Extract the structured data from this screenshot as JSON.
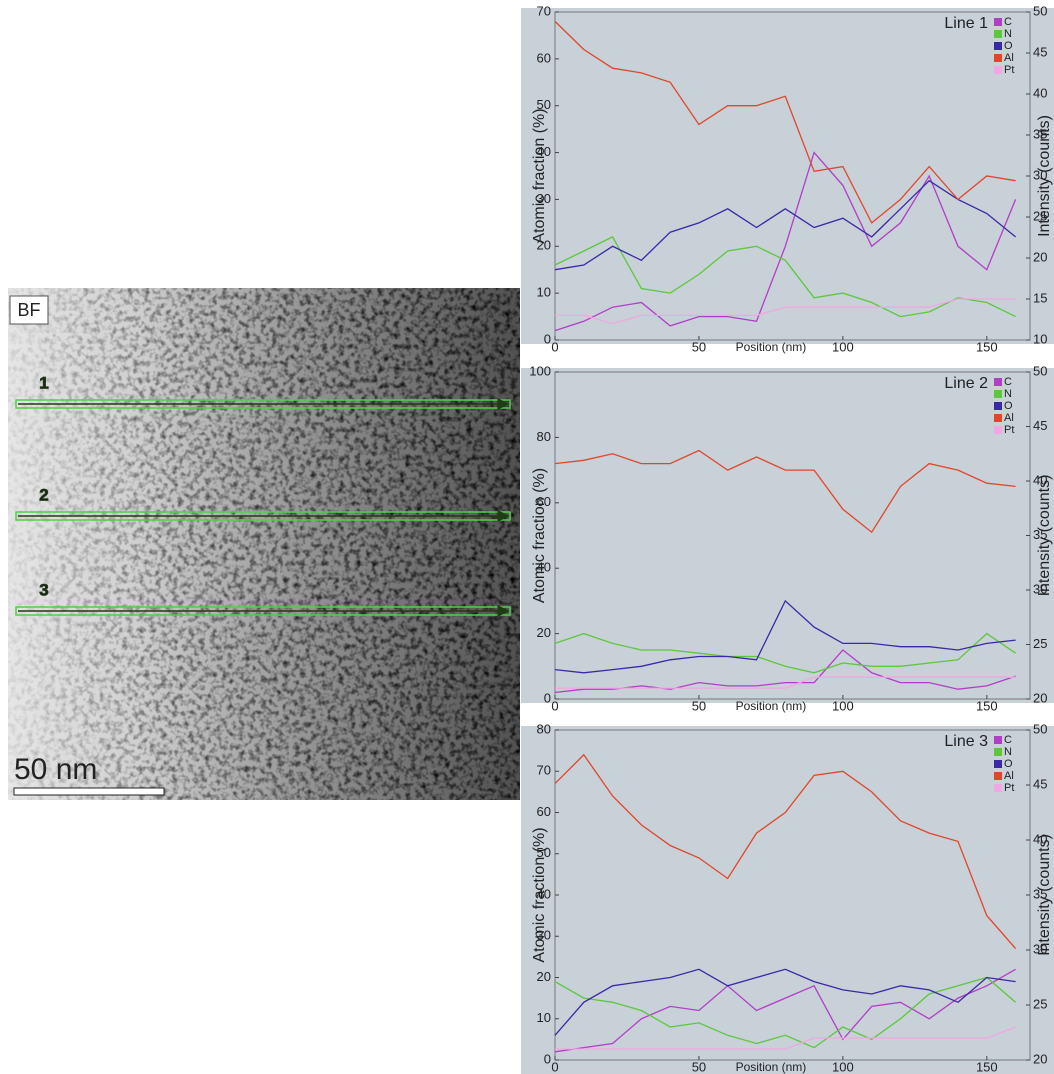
{
  "image": {
    "label": "BF",
    "scale_bar": "50 nm",
    "markers": [
      "1",
      "2",
      "3"
    ]
  },
  "chart_data": [
    {
      "type": "line",
      "title": "Line 1",
      "x_label": "Position (nm)",
      "y_label": "Atomic fraction (%)",
      "y2_label": "Intensity (counts)",
      "x": [
        0,
        10,
        20,
        30,
        40,
        50,
        60,
        70,
        80,
        90,
        100,
        110,
        120,
        130,
        140,
        150,
        160
      ],
      "xlim": [
        0,
        165
      ],
      "xticks": [
        0,
        50,
        100,
        150
      ],
      "ylim": [
        0,
        70
      ],
      "yticks": [
        0,
        10,
        20,
        30,
        40,
        50,
        60,
        70
      ],
      "y2lim": [
        10,
        50
      ],
      "y2ticks": [
        10,
        15,
        20,
        25,
        30,
        35,
        40,
        45,
        50
      ],
      "series": [
        {
          "name": "C",
          "color": "#b23ec8",
          "values": [
            2,
            4,
            7,
            8,
            3,
            5,
            5,
            4,
            20,
            40,
            33,
            20,
            25,
            35,
            20,
            15,
            30
          ]
        },
        {
          "name": "N",
          "color": "#5cc83a",
          "values": [
            16,
            19,
            22,
            11,
            10,
            14,
            19,
            20,
            17,
            9,
            10,
            8,
            5,
            6,
            9,
            8,
            5
          ]
        },
        {
          "name": "O",
          "color": "#3a28a8",
          "values": [
            15,
            16,
            20,
            17,
            23,
            25,
            28,
            24,
            28,
            24,
            26,
            22,
            28,
            34,
            30,
            27,
            22
          ]
        },
        {
          "name": "Al",
          "color": "#e2462a",
          "values": [
            68,
            62,
            58,
            57,
            55,
            46,
            50,
            50,
            52,
            36,
            37,
            25,
            30,
            37,
            30,
            35,
            34
          ]
        },
        {
          "name": "Pt",
          "color": "#f2a6e2",
          "axis": "y2",
          "values": [
            13,
            13,
            12,
            13,
            13,
            13,
            13,
            13,
            14,
            14,
            14,
            14,
            14,
            14,
            15,
            15,
            15
          ]
        }
      ]
    },
    {
      "type": "line",
      "title": "Line 2",
      "x_label": "Position (nm)",
      "y_label": "Atomic fraction (%)",
      "y2_label": "Intensity (counts)",
      "x": [
        0,
        10,
        20,
        30,
        40,
        50,
        60,
        70,
        80,
        90,
        100,
        110,
        120,
        130,
        140,
        150,
        160
      ],
      "xlim": [
        0,
        165
      ],
      "xticks": [
        0,
        50,
        100,
        150
      ],
      "ylim": [
        0,
        100
      ],
      "yticks": [
        0,
        20,
        40,
        60,
        80,
        100
      ],
      "y2lim": [
        20,
        50
      ],
      "y2ticks": [
        20,
        25,
        30,
        35,
        40,
        45,
        50
      ],
      "series": [
        {
          "name": "C",
          "color": "#b23ec8",
          "values": [
            2,
            3,
            3,
            4,
            3,
            5,
            4,
            4,
            5,
            5,
            15,
            8,
            5,
            5,
            3,
            4,
            7
          ]
        },
        {
          "name": "N",
          "color": "#5cc83a",
          "values": [
            17,
            20,
            17,
            15,
            15,
            14,
            13,
            13,
            10,
            8,
            11,
            10,
            10,
            11,
            12,
            20,
            14
          ]
        },
        {
          "name": "O",
          "color": "#3a28a8",
          "values": [
            9,
            8,
            9,
            10,
            12,
            13,
            13,
            12,
            30,
            22,
            17,
            17,
            16,
            16,
            15,
            17,
            18
          ]
        },
        {
          "name": "Al",
          "color": "#e2462a",
          "values": [
            72,
            73,
            75,
            72,
            72,
            76,
            70,
            74,
            70,
            70,
            58,
            51,
            65,
            72,
            70,
            66,
            65
          ]
        },
        {
          "name": "Pt",
          "color": "#f2a6e2",
          "axis": "y2",
          "values": [
            21,
            21,
            21,
            21,
            21,
            21,
            21,
            21,
            21,
            22,
            22,
            22,
            22,
            22,
            22,
            22,
            22
          ]
        }
      ]
    },
    {
      "type": "line",
      "title": "Line 3",
      "x_label": "Position (nm)",
      "y_label": "Atomic fraction (%)",
      "y2_label": "Intensity (counts)",
      "x": [
        0,
        10,
        20,
        30,
        40,
        50,
        60,
        70,
        80,
        90,
        100,
        110,
        120,
        130,
        140,
        150,
        160
      ],
      "xlim": [
        0,
        165
      ],
      "xticks": [
        0,
        50,
        100,
        150
      ],
      "ylim": [
        0,
        80
      ],
      "yticks": [
        0,
        10,
        20,
        30,
        40,
        50,
        60,
        70,
        80
      ],
      "y2lim": [
        20,
        50
      ],
      "y2ticks": [
        20,
        25,
        30,
        35,
        40,
        45,
        50
      ],
      "series": [
        {
          "name": "C",
          "color": "#b23ec8",
          "values": [
            2,
            3,
            4,
            10,
            13,
            12,
            18,
            12,
            15,
            18,
            5,
            13,
            14,
            10,
            15,
            18,
            22
          ]
        },
        {
          "name": "N",
          "color": "#5cc83a",
          "values": [
            19,
            15,
            14,
            12,
            8,
            9,
            6,
            4,
            6,
            3,
            8,
            5,
            10,
            16,
            18,
            20,
            14
          ]
        },
        {
          "name": "O",
          "color": "#3a28a8",
          "values": [
            6,
            14,
            18,
            19,
            20,
            22,
            18,
            20,
            22,
            19,
            17,
            16,
            18,
            17,
            14,
            20,
            19
          ]
        },
        {
          "name": "Al",
          "color": "#e2462a",
          "values": [
            67,
            74,
            64,
            57,
            52,
            49,
            44,
            55,
            60,
            69,
            70,
            65,
            58,
            55,
            53,
            35,
            27
          ]
        },
        {
          "name": "Pt",
          "color": "#f2a6e2",
          "axis": "y2",
          "values": [
            21,
            21,
            21,
            21,
            21,
            21,
            21,
            21,
            21,
            22,
            22,
            22,
            22,
            22,
            22,
            22,
            23
          ]
        }
      ]
    }
  ]
}
